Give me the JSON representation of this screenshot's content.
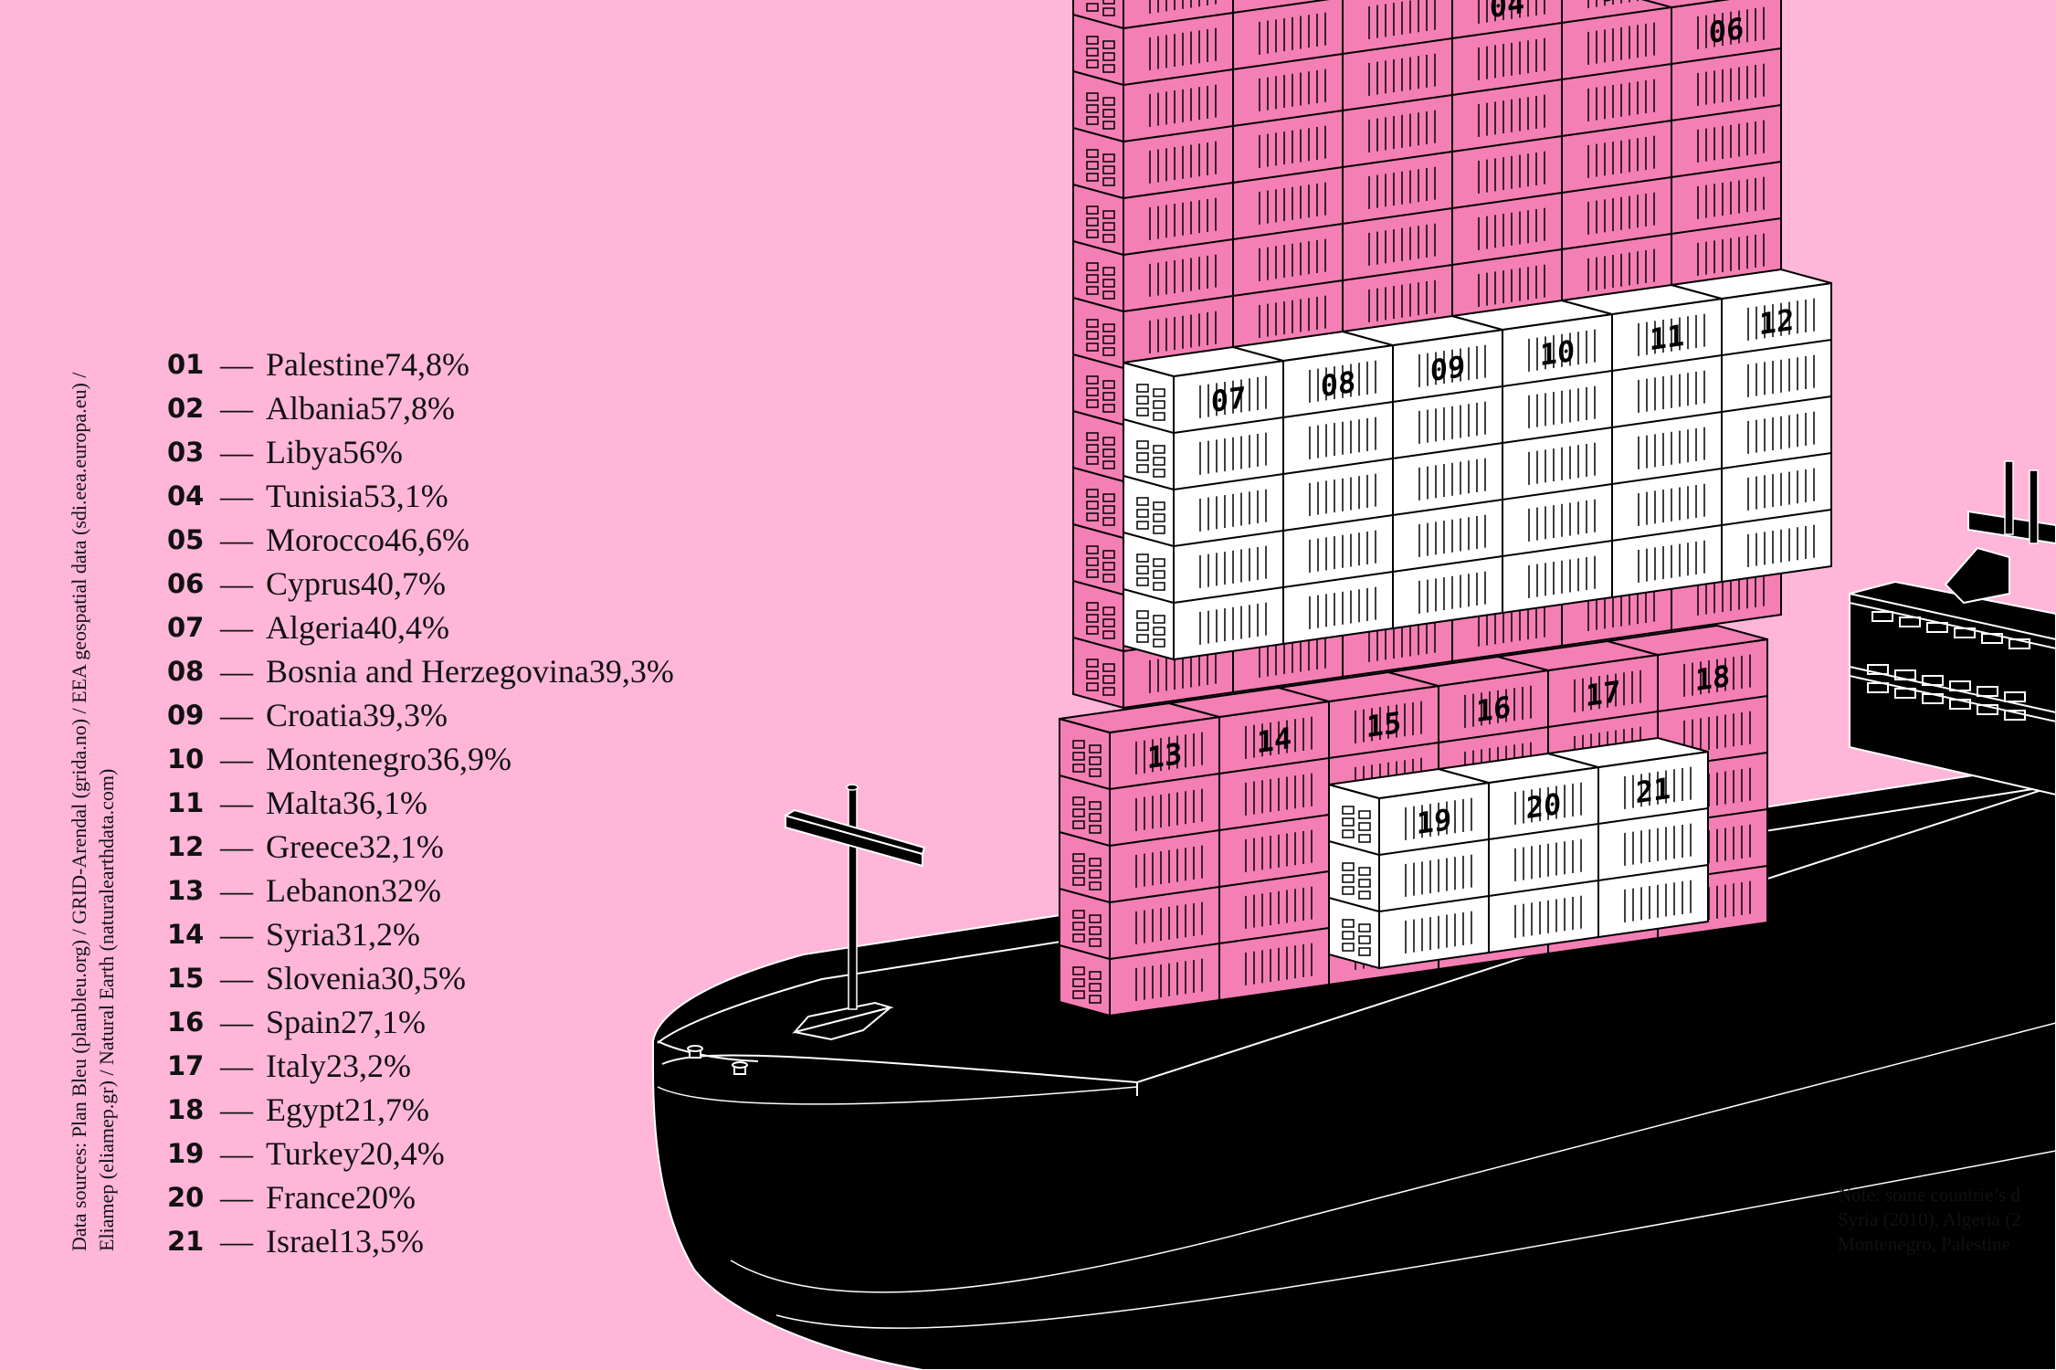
{
  "sources": {
    "line1": "Data sources: Plan Bleu (planbleu.org) / GRID-Arendal (grida.no) / EEA geospatial data (sdi.eea.europa.eu) /",
    "line2": "Eliamep (eliamep.gr) / Natural Earth (naturalearthdata.com)"
  },
  "note": {
    "line1": "Note: some countrie’s d",
    "line2": "Syria (2010), Algeria (2",
    "line3": "Montenegro, Palestine"
  },
  "colors": {
    "background": "#ffb6d9",
    "pink_container": "#f47fb4",
    "white_container": "#ffffff",
    "hull": "#000000"
  },
  "chart_data": {
    "type": "bar",
    "items": [
      {
        "num": "01",
        "country": "Palestine",
        "label": "74,8%",
        "value": 74.8,
        "color": "pink"
      },
      {
        "num": "02",
        "country": "Albania",
        "label": "57,8%",
        "value": 57.8,
        "color": "pink"
      },
      {
        "num": "03",
        "country": "Libya",
        "label": "56%",
        "value": 56,
        "color": "pink"
      },
      {
        "num": "04",
        "country": "Tunisia",
        "label": "53,1%",
        "value": 53.1,
        "color": "pink"
      },
      {
        "num": "05",
        "country": "Morocco",
        "label": "46,6%",
        "value": 46.6,
        "color": "pink"
      },
      {
        "num": "06",
        "country": "Cyprus",
        "label": "40,7%",
        "value": 40.7,
        "color": "pink"
      },
      {
        "num": "07",
        "country": "Algeria",
        "label": "40,4%",
        "value": 40.4,
        "color": "white"
      },
      {
        "num": "08",
        "country": "Bosnia and Herzegovina",
        "label": "39,3%",
        "value": 39.3,
        "color": "white"
      },
      {
        "num": "09",
        "country": "Croatia",
        "label": "39,3%",
        "value": 39.3,
        "color": "white"
      },
      {
        "num": "10",
        "country": "Montenegro",
        "label": "36,9%",
        "value": 36.9,
        "color": "white"
      },
      {
        "num": "11",
        "country": "Malta",
        "label": "36,1%",
        "value": 36.1,
        "color": "white"
      },
      {
        "num": "12",
        "country": "Greece",
        "label": "32,1%",
        "value": 32.1,
        "color": "white"
      },
      {
        "num": "13",
        "country": "Lebanon",
        "label": "32%",
        "value": 32,
        "color": "pink"
      },
      {
        "num": "14",
        "country": "Syria",
        "label": "31,2%",
        "value": 31.2,
        "color": "pink"
      },
      {
        "num": "15",
        "country": "Slovenia",
        "label": "30,5%",
        "value": 30.5,
        "color": "pink"
      },
      {
        "num": "16",
        "country": "Spain",
        "label": "27,1%",
        "value": 27.1,
        "color": "pink"
      },
      {
        "num": "17",
        "country": "Italy",
        "label": "23,2%",
        "value": 23.2,
        "color": "pink"
      },
      {
        "num": "18",
        "country": "Egypt",
        "label": "21,7%",
        "value": 21.7,
        "color": "pink"
      },
      {
        "num": "19",
        "country": "Turkey",
        "label": "20,4%",
        "value": 20.4,
        "color": "white"
      },
      {
        "num": "20",
        "country": "France",
        "label": "20%",
        "value": 20,
        "color": "white"
      },
      {
        "num": "21",
        "country": "Israel",
        "label": "13,5%",
        "value": 13.5,
        "color": "white"
      }
    ]
  }
}
